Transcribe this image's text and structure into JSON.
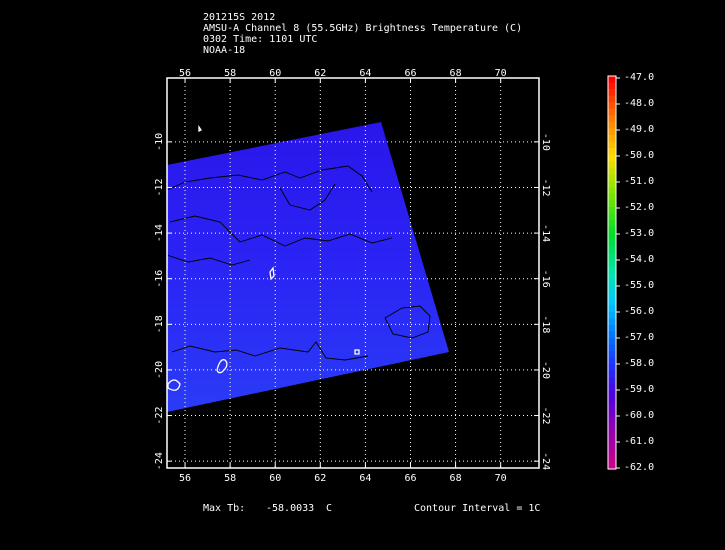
{
  "header": {
    "line1": "201215S 2012",
    "line2": "AMSU-A Channel 8 (55.5GHz) Brightness Temperature (C)",
    "line3": "0302 Time: 1101 UTC",
    "line4": "NOAA-18"
  },
  "map": {
    "lon_ticks": [
      "56",
      "58",
      "60",
      "62",
      "64",
      "66",
      "68",
      "70"
    ],
    "lat_ticks": [
      "-10",
      "-12",
      "-14",
      "-16",
      "-18",
      "-20",
      "-22",
      "-24"
    ],
    "lon_range": [
      55.2,
      71.7
    ],
    "lat_range": [
      -24.3,
      -7.2
    ],
    "swath_color": "#2a14f0",
    "contour_color": "#000000"
  },
  "colorbar": {
    "labels": [
      "-47.0",
      "-48.0",
      "-49.0",
      "-50.0",
      "-51.0",
      "-52.0",
      "-53.0",
      "-54.0",
      "-55.0",
      "-56.0",
      "-57.0",
      "-58.0",
      "-59.0",
      "-60.0",
      "-61.0",
      "-62.0"
    ]
  },
  "footer": {
    "max_label": "Max Tb:",
    "max_value": "-58.0033",
    "max_unit": "C",
    "contour_interval": "Contour Interval = 1C"
  }
}
